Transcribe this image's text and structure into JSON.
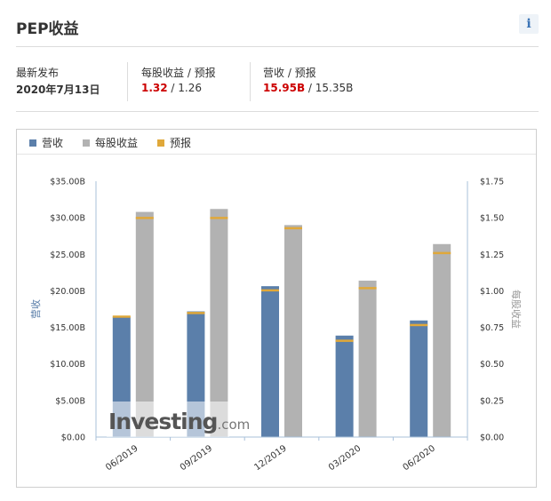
{
  "header": {
    "title": "PEP收益",
    "info_icon_label": "i"
  },
  "stats": {
    "release_label": "最新发布",
    "release_value": "2020年7月13日",
    "eps_label": "每股收益 / 预报",
    "eps_actual": "1.32",
    "eps_sep": " / ",
    "eps_forecast": "1.26",
    "rev_label": "营收 / 预报",
    "rev_actual": "15.95B",
    "rev_sep": " / ",
    "rev_forecast": "15.35B"
  },
  "colors": {
    "revenue": "#5b7faa",
    "eps": "#b2b2b2",
    "forecast": "#e0a83a",
    "axis": "#a8c0da",
    "red": "#cc0000"
  },
  "watermark": {
    "brand": "Investing",
    "suffix": ".com"
  },
  "chart_data": {
    "type": "bar",
    "legend": [
      "营收",
      "每股收益",
      "预报"
    ],
    "legend_placement": "top-left",
    "categories": [
      "06/2019",
      "09/2019",
      "12/2019",
      "03/2020",
      "06/2020"
    ],
    "series": [
      {
        "name": "营收",
        "axis": "left",
        "values": [
          16.45,
          17.19,
          20.64,
          13.88,
          15.95
        ],
        "forecast": [
          16.5,
          17.0,
          20.1,
          13.2,
          15.35
        ]
      },
      {
        "name": "每股收益",
        "axis": "right",
        "values": [
          1.54,
          1.56,
          1.45,
          1.07,
          1.32
        ],
        "forecast": [
          1.5,
          1.5,
          1.43,
          1.02,
          1.26
        ]
      }
    ],
    "y_left": {
      "label": "营收",
      "min": 0,
      "max": 35,
      "ticks": [
        "$0.00",
        "$5.00B",
        "$10.00B",
        "$15.00B",
        "$20.00B",
        "$25.00B",
        "$30.00B",
        "$35.00B"
      ]
    },
    "y_right": {
      "label": "每股收益",
      "min": 0,
      "max": 1.75,
      "ticks": [
        "$0.00",
        "$0.25",
        "$0.50",
        "$0.75",
        "$1.00",
        "$1.25",
        "$1.50",
        "$1.75"
      ]
    },
    "grid": false
  }
}
